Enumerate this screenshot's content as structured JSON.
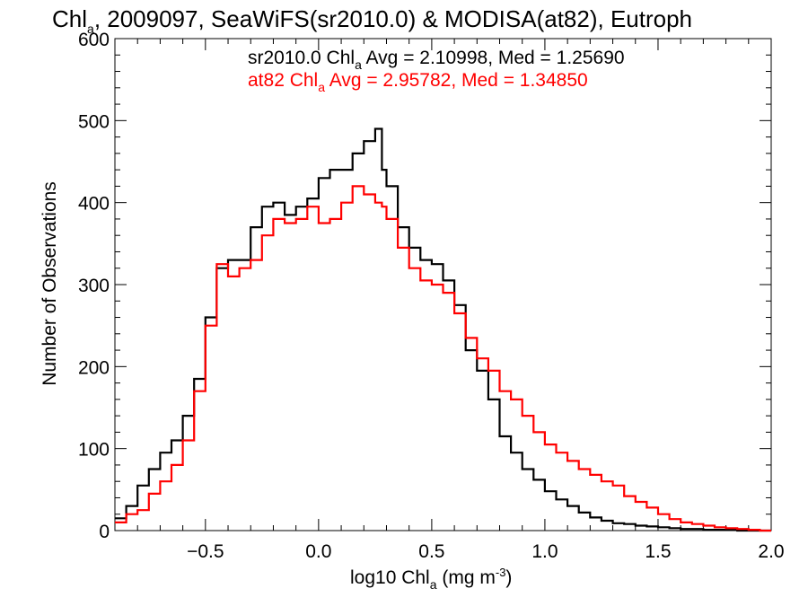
{
  "chart_data": {
    "type": "step-histogram",
    "title": {
      "prefix": "Chl",
      "sub": "a",
      "rest": ", 2009097, SeaWiFS(sr2010.0) & MODISA(at82), Eutroph"
    },
    "xlabel": {
      "prefix": "log10 Chl",
      "sub": "a",
      "mid": " (mg m",
      "sup": "-3",
      "suffix": ")"
    },
    "ylabel": "Number of Observations",
    "xlim": [
      -0.9,
      2.0
    ],
    "ylim": [
      0,
      600
    ],
    "xticks": [
      -0.5,
      0.0,
      0.5,
      1.0,
      1.5,
      2.0
    ],
    "xtick_labels": [
      "−0.5",
      "0.0",
      "0.5",
      "1.0",
      "1.5",
      "2.0"
    ],
    "yticks": [
      0,
      100,
      200,
      300,
      400,
      500,
      600
    ],
    "ytick_labels": [
      "0",
      "100",
      "200",
      "300",
      "400",
      "500",
      "600"
    ],
    "legend": [
      {
        "label_pre": "sr2010.0 Chl",
        "label_sub": "a",
        "label_post": " Avg = 2.10998, Med = 1.25690",
        "color": "#000000"
      },
      {
        "label_pre": "at82 Chl",
        "label_sub": "a",
        "label_post": " Avg = 2.95782, Med = 1.34850",
        "color": "#ff0000"
      }
    ],
    "series": [
      {
        "name": "sr2010.0",
        "color": "#000000",
        "points": [
          [
            -0.9,
            15
          ],
          [
            -0.85,
            30
          ],
          [
            -0.8,
            55
          ],
          [
            -0.75,
            75
          ],
          [
            -0.7,
            95
          ],
          [
            -0.65,
            110
          ],
          [
            -0.6,
            140
          ],
          [
            -0.55,
            185
          ],
          [
            -0.5,
            260
          ],
          [
            -0.45,
            320
          ],
          [
            -0.4,
            330
          ],
          [
            -0.35,
            330
          ],
          [
            -0.3,
            370
          ],
          [
            -0.25,
            395
          ],
          [
            -0.2,
            400
          ],
          [
            -0.15,
            385
          ],
          [
            -0.1,
            395
          ],
          [
            -0.05,
            405
          ],
          [
            0.0,
            430
          ],
          [
            0.05,
            440
          ],
          [
            0.1,
            440
          ],
          [
            0.15,
            460
          ],
          [
            0.2,
            475
          ],
          [
            0.25,
            490
          ],
          [
            0.28,
            440
          ],
          [
            0.3,
            420
          ],
          [
            0.35,
            370
          ],
          [
            0.4,
            345
          ],
          [
            0.45,
            330
          ],
          [
            0.5,
            325
          ],
          [
            0.55,
            305
          ],
          [
            0.6,
            275
          ],
          [
            0.65,
            220
          ],
          [
            0.7,
            195
          ],
          [
            0.75,
            160
          ],
          [
            0.8,
            115
          ],
          [
            0.85,
            95
          ],
          [
            0.9,
            75
          ],
          [
            0.95,
            62
          ],
          [
            1.0,
            48
          ],
          [
            1.05,
            38
          ],
          [
            1.1,
            30
          ],
          [
            1.15,
            22
          ],
          [
            1.2,
            16
          ],
          [
            1.25,
            12
          ],
          [
            1.3,
            9
          ],
          [
            1.35,
            8
          ],
          [
            1.4,
            6
          ],
          [
            1.45,
            5
          ],
          [
            1.5,
            4
          ],
          [
            1.55,
            3
          ],
          [
            1.6,
            2
          ],
          [
            1.65,
            2
          ],
          [
            1.7,
            1
          ],
          [
            1.75,
            1
          ],
          [
            1.8,
            1
          ],
          [
            1.85,
            0
          ],
          [
            1.9,
            0
          ],
          [
            1.95,
            0
          ],
          [
            2.0,
            0
          ]
        ]
      },
      {
        "name": "at82",
        "color": "#ff0000",
        "points": [
          [
            -0.9,
            10
          ],
          [
            -0.85,
            20
          ],
          [
            -0.8,
            25
          ],
          [
            -0.75,
            45
          ],
          [
            -0.7,
            60
          ],
          [
            -0.65,
            80
          ],
          [
            -0.6,
            110
          ],
          [
            -0.55,
            170
          ],
          [
            -0.5,
            250
          ],
          [
            -0.45,
            325
          ],
          [
            -0.4,
            310
          ],
          [
            -0.35,
            320
          ],
          [
            -0.3,
            330
          ],
          [
            -0.25,
            360
          ],
          [
            -0.2,
            380
          ],
          [
            -0.15,
            375
          ],
          [
            -0.1,
            380
          ],
          [
            -0.05,
            395
          ],
          [
            0.0,
            375
          ],
          [
            0.05,
            380
          ],
          [
            0.1,
            400
          ],
          [
            0.15,
            420
          ],
          [
            0.2,
            410
          ],
          [
            0.25,
            400
          ],
          [
            0.28,
            395
          ],
          [
            0.3,
            380
          ],
          [
            0.35,
            345
          ],
          [
            0.4,
            320
          ],
          [
            0.45,
            305
          ],
          [
            0.5,
            300
          ],
          [
            0.55,
            290
          ],
          [
            0.6,
            265
          ],
          [
            0.65,
            235
          ],
          [
            0.7,
            210
          ],
          [
            0.75,
            195
          ],
          [
            0.8,
            170
          ],
          [
            0.85,
            160
          ],
          [
            0.9,
            140
          ],
          [
            0.95,
            120
          ],
          [
            1.0,
            105
          ],
          [
            1.05,
            95
          ],
          [
            1.1,
            85
          ],
          [
            1.15,
            75
          ],
          [
            1.2,
            68
          ],
          [
            1.25,
            60
          ],
          [
            1.3,
            55
          ],
          [
            1.35,
            42
          ],
          [
            1.4,
            35
          ],
          [
            1.45,
            28
          ],
          [
            1.5,
            20
          ],
          [
            1.55,
            14
          ],
          [
            1.6,
            10
          ],
          [
            1.65,
            8
          ],
          [
            1.7,
            6
          ],
          [
            1.75,
            4
          ],
          [
            1.8,
            3
          ],
          [
            1.85,
            2
          ],
          [
            1.9,
            1
          ],
          [
            1.95,
            0
          ],
          [
            2.0,
            0
          ]
        ]
      }
    ]
  }
}
